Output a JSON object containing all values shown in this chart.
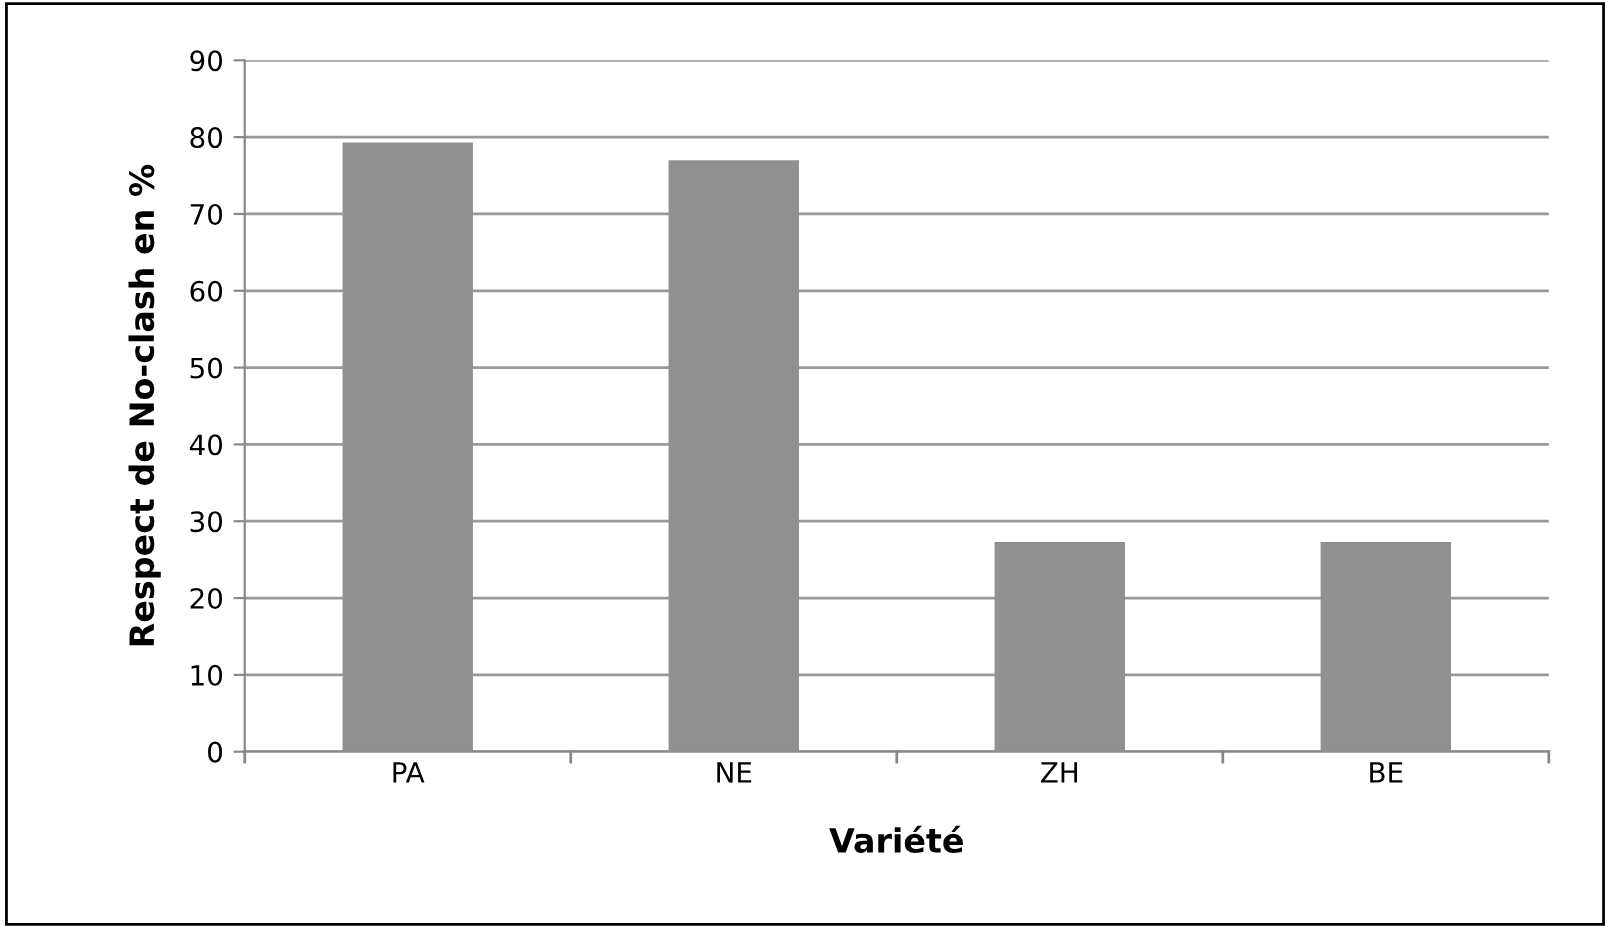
{
  "chart_data": {
    "type": "bar",
    "xlabel": "Variété",
    "ylabel": "Respect de No-clash en %",
    "categories": [
      "PA",
      "NE",
      "ZH",
      "BE"
    ],
    "values": [
      79.3,
      77.0,
      27.3,
      27.3
    ],
    "color": "#909090",
    "ylim": [
      0,
      90
    ],
    "yticks": [
      0,
      10,
      20,
      30,
      40,
      50,
      60,
      70,
      80,
      90
    ],
    "grid": "y",
    "legend": false
  }
}
